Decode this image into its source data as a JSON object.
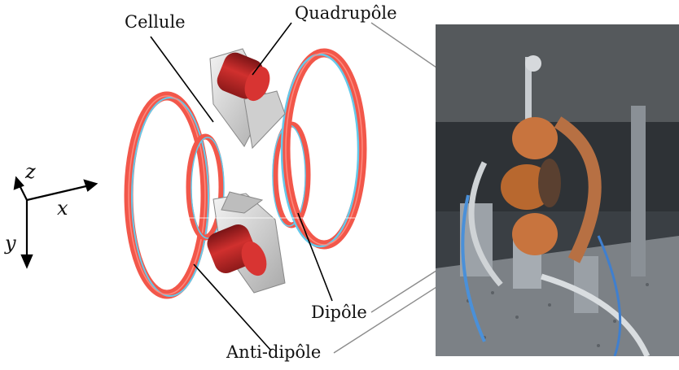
{
  "labels": {
    "cellule": "Cellule",
    "quadrupole": "Quadrupôle",
    "dipole": "Dipôle",
    "anti_dipole": "Anti-dipôle"
  },
  "axes": {
    "x": "x",
    "y": "y",
    "z": "z"
  },
  "colors": {
    "coil_outer": "#f2574a",
    "coil_inner": "#64c9ea",
    "magnet_red": "#c0282a",
    "housing_gray": "#d8d8d8",
    "photo_bg": "#3a3f44",
    "copper": "#c8743e"
  }
}
